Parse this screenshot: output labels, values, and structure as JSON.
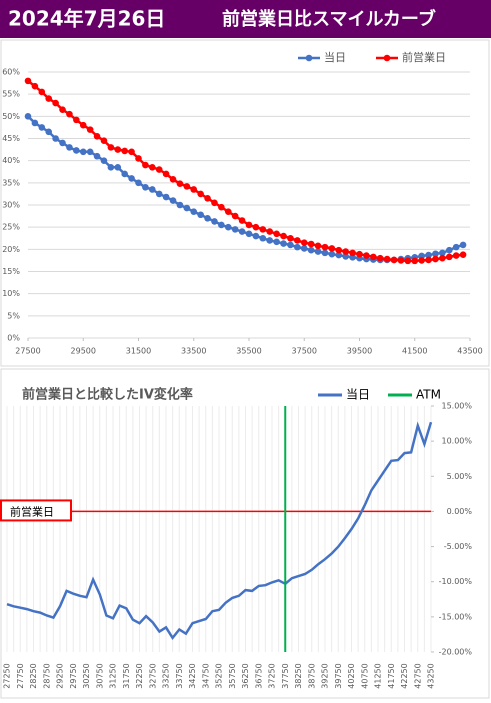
{
  "header": {
    "date": "2024年7月26日",
    "title": "前営業日比スマイルカーブ"
  },
  "chart_data": [
    {
      "type": "line",
      "markers": true,
      "x": [
        27500,
        27750,
        28000,
        28250,
        28500,
        28750,
        29000,
        29250,
        29500,
        29750,
        30000,
        30250,
        30500,
        30750,
        31000,
        31250,
        31500,
        31750,
        32000,
        32250,
        32500,
        32750,
        33000,
        33250,
        33500,
        33750,
        34000,
        34250,
        34500,
        34750,
        35000,
        35250,
        35500,
        35750,
        36000,
        36250,
        36500,
        36750,
        37000,
        37250,
        37500,
        37750,
        38000,
        38250,
        38500,
        38750,
        39000,
        39250,
        39500,
        39750,
        40000,
        40250,
        40500,
        40750,
        41000,
        41250,
        41500,
        41750,
        42000,
        42250,
        42500,
        42750,
        43000,
        43250
      ],
      "series": [
        {
          "name": "当日",
          "color": "#4472c4",
          "values": [
            50,
            48.5,
            47.5,
            46.5,
            45,
            44,
            43,
            42.3,
            42,
            42,
            41,
            40,
            38.5,
            38.5,
            37,
            36,
            35,
            34,
            33.5,
            32.5,
            31.8,
            31,
            30,
            29.3,
            28.5,
            27.8,
            27,
            26.3,
            25.5,
            25,
            24.5,
            24,
            23.5,
            23,
            22.5,
            22,
            21.7,
            21.3,
            21,
            20.5,
            20.2,
            19.8,
            19.5,
            19.2,
            18.9,
            18.7,
            18.4,
            18.2,
            18,
            17.8,
            17.7,
            17.6,
            17.6,
            17.6,
            17.8,
            18,
            18.2,
            18.5,
            18.7,
            19,
            19.2,
            19.8,
            20.5,
            21
          ]
        },
        {
          "name": "前営業日",
          "color": "#ff0000",
          "values": [
            58,
            56.8,
            55.5,
            54,
            53,
            51.5,
            50.5,
            49.2,
            48,
            47,
            45.5,
            44.5,
            43,
            42.5,
            42.2,
            42,
            40.5,
            39,
            38.5,
            38,
            37,
            35.8,
            34.8,
            34.2,
            33.5,
            32.5,
            31.5,
            30.5,
            29.5,
            28.5,
            27.5,
            26.5,
            25.5,
            25,
            24.5,
            24,
            23.5,
            23,
            22.5,
            22,
            21.5,
            21.2,
            20.8,
            20.5,
            20.2,
            19.8,
            19.5,
            19.2,
            18.9,
            18.6,
            18.3,
            18,
            17.8,
            17.6,
            17.5,
            17.4,
            17.4,
            17.5,
            17.6,
            17.8,
            18,
            18.3,
            18.6,
            18.8
          ]
        }
      ],
      "xlim": [
        27500,
        43500
      ],
      "xticks": [
        27500,
        29500,
        31500,
        33500,
        35500,
        37500,
        39500,
        41500,
        43500
      ],
      "ylim": [
        0,
        60
      ],
      "yticks": [
        {
          "value": 0,
          "label": "0%"
        },
        {
          "value": 5,
          "label": "5%"
        },
        {
          "value": 10,
          "label": "10%"
        },
        {
          "value": 15,
          "label": "15%"
        },
        {
          "value": 20,
          "label": "20%"
        },
        {
          "value": 25,
          "label": "25%"
        },
        {
          "value": 30,
          "label": "30%"
        },
        {
          "value": 35,
          "label": "35%"
        },
        {
          "value": 40,
          "label": "40%"
        },
        {
          "value": 45,
          "label": "45%"
        },
        {
          "value": 50,
          "label": "50%"
        },
        {
          "value": 55,
          "label": "55%"
        },
        {
          "value": 60,
          "label": "60%"
        }
      ],
      "grid": true,
      "legend": "top-right"
    },
    {
      "type": "line",
      "title": "前営業日と比較したIV変化率",
      "categories": [
        27250,
        null,
        27750,
        null,
        28250,
        null,
        28750,
        null,
        29250,
        null,
        29750,
        null,
        30250,
        null,
        30750,
        null,
        31250,
        null,
        31750,
        null,
        32250,
        null,
        32750,
        null,
        33250,
        null,
        33750,
        null,
        34250,
        null,
        34750,
        null,
        35250,
        null,
        35750,
        null,
        36250,
        null,
        36750,
        null,
        37250,
        null,
        37750,
        null,
        38250,
        null,
        38750,
        null,
        39250,
        null,
        39750,
        null,
        40250,
        null,
        40750,
        null,
        41250,
        null,
        41750,
        null,
        42250,
        null,
        42750,
        null,
        43250
      ],
      "series": [
        {
          "name": "当日",
          "color": "#4472c4",
          "values": [
            -13.2,
            -13.5,
            -13.7,
            -13.9,
            -14.2,
            -14.4,
            -14.8,
            -15.1,
            -13.5,
            -11.3,
            -11.7,
            -12,
            -12.2,
            -9.7,
            -11.8,
            -14.8,
            -15.2,
            -13.4,
            -13.8,
            -15.4,
            -15.9,
            -14.9,
            -15.8,
            -17.1,
            -16.5,
            -18,
            -16.8,
            -17.4,
            -15.9,
            -15.6,
            -15.3,
            -14.2,
            -14,
            -13,
            -12.3,
            -12,
            -11.2,
            -11.3,
            -10.6,
            -10.5,
            -10.1,
            -9.8,
            -10.3,
            -9.5,
            -9.2,
            -8.9,
            -8.3,
            -7.5,
            -6.8,
            -6,
            -5,
            -3.8,
            -2.5,
            -1,
            0.9,
            3,
            4.4,
            5.8,
            7.2,
            7.3,
            8.3,
            8.4,
            12.2,
            9.6,
            12.7
          ]
        },
        {
          "name": "ATM",
          "color": "#00b050",
          "x": 37750
        }
      ],
      "reference_line": {
        "label": "前営業日",
        "value": 0,
        "color": "#ff0000"
      },
      "ylim": [
        -20,
        15
      ],
      "y_axis_side": "right",
      "yticks": [
        {
          "value": 15,
          "label": "15.00%"
        },
        {
          "value": 10,
          "label": "10.00%"
        },
        {
          "value": 5,
          "label": "5.00%"
        },
        {
          "value": 0,
          "label": "0.00%"
        },
        {
          "value": -5,
          "label": "-5.00%"
        },
        {
          "value": -10,
          "label": "-10.00%"
        },
        {
          "value": -15,
          "label": "-15.00%"
        },
        {
          "value": -20,
          "label": "-20.00%"
        }
      ],
      "grid": true,
      "legend": "top-right"
    }
  ]
}
